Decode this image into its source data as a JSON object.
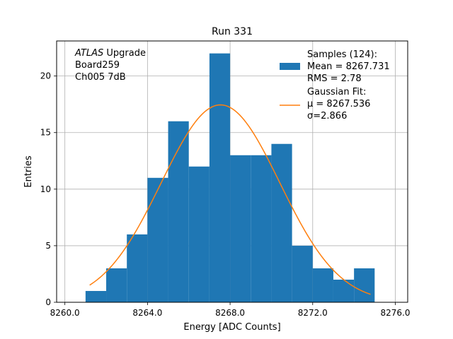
{
  "chart_data": {
    "type": "bar",
    "title": "Run 331",
    "xlabel": "Energy [ADC Counts]",
    "ylabel": "Entries",
    "xlim": [
      8259.6,
      8276.6
    ],
    "ylim": [
      0,
      23.1
    ],
    "grid": true,
    "x_ticks": [
      8260,
      8264,
      8268,
      8272,
      8276
    ],
    "x_tick_labels": [
      "8260.0",
      "8264.0",
      "8268.0",
      "8272.0",
      "8276.0"
    ],
    "y_ticks": [
      0,
      5,
      10,
      15,
      20
    ],
    "y_tick_labels": [
      "0",
      "5",
      "10",
      "15",
      "20"
    ],
    "bin_edges": [
      8261.0,
      8262.0,
      8263.0,
      8264.0,
      8265.0,
      8266.0,
      8267.0,
      8268.0,
      8269.0,
      8270.0,
      8271.0,
      8272.0,
      8273.0,
      8274.0,
      8275.0
    ],
    "counts": [
      1,
      3,
      6,
      11,
      16,
      12,
      22,
      13,
      13,
      14,
      5,
      3,
      2,
      3
    ],
    "bar_color": "#1f77b4",
    "fit": {
      "mu": 8267.536,
      "sigma": 2.866,
      "amplitude": 17.45,
      "x_range": [
        8261.2,
        8274.8
      ],
      "color": "#ff7f0e"
    },
    "annotation": {
      "lines": [
        {
          "italic": "ATLAS",
          "rest": " Upgrade"
        },
        {
          "italic": "",
          "rest": " Board259"
        },
        {
          "italic": "",
          "rest": " Ch005 7dB"
        }
      ]
    },
    "legend": {
      "position": "top-right",
      "entries": [
        {
          "kind": "patch",
          "lines": [
            "Samples (124):",
            " Mean = 8267.731",
            " RMS = 2.78"
          ]
        },
        {
          "kind": "line",
          "lines": [
            "Gaussian Fit:",
            " μ = 8267.536",
            " σ=2.866"
          ]
        }
      ]
    }
  }
}
